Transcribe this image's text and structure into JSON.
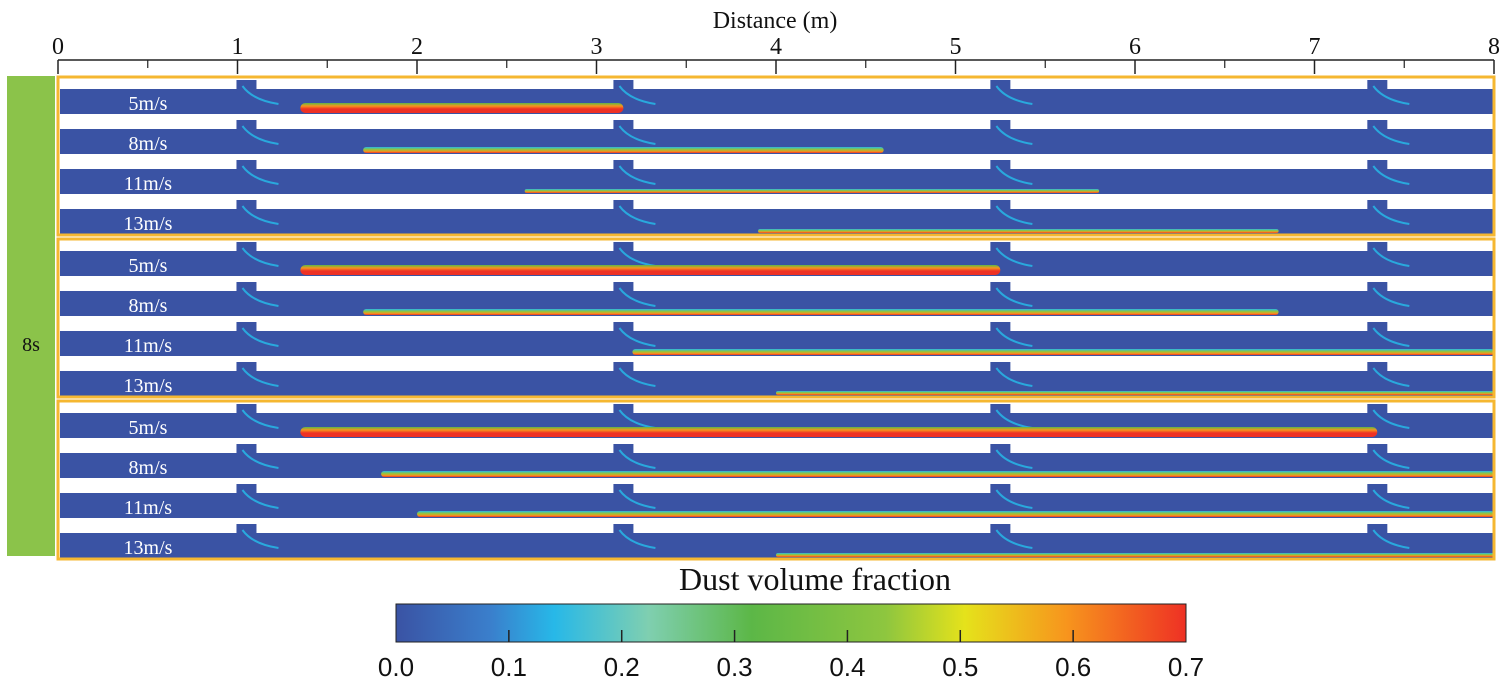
{
  "axis": {
    "title": "Distance (m)",
    "ticks": [
      "0",
      "1",
      "2",
      "3",
      "4",
      "5",
      "6",
      "7",
      "8"
    ],
    "range": [
      0,
      8
    ]
  },
  "time_label": "8s",
  "groups": [
    {
      "inlets_m": [
        1.05,
        3.15,
        5.25,
        7.35
      ],
      "rows": [
        {
          "label": "5m/s",
          "deposit": [
            1.35,
            3.15
          ],
          "peak": 0.68
        },
        {
          "label": "8m/s",
          "deposit": [
            1.7,
            4.6
          ],
          "peak": 0.62
        },
        {
          "label": "11m/s",
          "deposit": [
            2.6,
            5.8
          ],
          "peak": 0.58
        },
        {
          "label": "13m/s",
          "deposit": [
            3.9,
            6.8
          ],
          "peak": 0.55
        }
      ]
    },
    {
      "inlets_m": [
        1.05,
        3.15,
        5.25,
        7.35
      ],
      "rows": [
        {
          "label": "5m/s",
          "deposit": [
            1.35,
            5.25
          ],
          "peak": 0.68
        },
        {
          "label": "8m/s",
          "deposit": [
            1.7,
            6.8
          ],
          "peak": 0.64
        },
        {
          "label": "11m/s",
          "deposit": [
            3.2,
            8.0
          ],
          "peak": 0.62
        },
        {
          "label": "13m/s",
          "deposit": [
            4.0,
            8.0
          ],
          "peak": 0.58
        }
      ]
    },
    {
      "inlets_m": [
        1.05,
        3.15,
        5.25,
        7.35
      ],
      "rows": [
        {
          "label": "5m/s",
          "deposit": [
            1.35,
            7.35
          ],
          "peak": 0.66
        },
        {
          "label": "8m/s",
          "deposit": [
            1.8,
            8.0
          ],
          "peak": 0.6
        },
        {
          "label": "11m/s",
          "deposit": [
            2.0,
            8.0
          ],
          "peak": 0.6
        },
        {
          "label": "13m/s",
          "deposit": [
            4.0,
            8.0
          ],
          "peak": 0.58
        }
      ]
    }
  ],
  "colorbar": {
    "title": "Dust volume fraction",
    "ticks": [
      "0.0",
      "0.1",
      "0.2",
      "0.3",
      "0.4",
      "0.5",
      "0.6",
      "0.7"
    ],
    "min": 0.0,
    "max": 0.7
  },
  "colors": {
    "background_blue": "#3a53a4",
    "frame_orange": "#f5b731",
    "side_green": "#8bc34a",
    "gradient": [
      "#3a53a4",
      "#3a7fcc",
      "#27b8e8",
      "#7fcfb0",
      "#5cb747",
      "#8ec63f",
      "#e5e21b",
      "#f7941d",
      "#ee3124"
    ]
  }
}
